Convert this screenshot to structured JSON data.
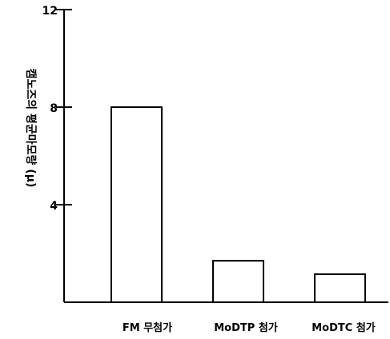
{
  "chart_data": {
    "type": "bar",
    "title": "",
    "xlabel": "",
    "ylabel": "캠노즈의 평균마모량  (μ)",
    "categories": [
      "FM 무첨가",
      "MoDTP 첨가",
      "MoDTC 첨가"
    ],
    "values": [
      8.0,
      1.7,
      1.15
    ],
    "ylim": [
      0,
      12
    ],
    "yticks": [
      "4",
      "8",
      "12"
    ],
    "ytick_values": [
      4,
      8,
      12
    ],
    "grid": false,
    "legend": "none",
    "bar_fill": "#ffffff",
    "bar_stroke": "#000000"
  }
}
